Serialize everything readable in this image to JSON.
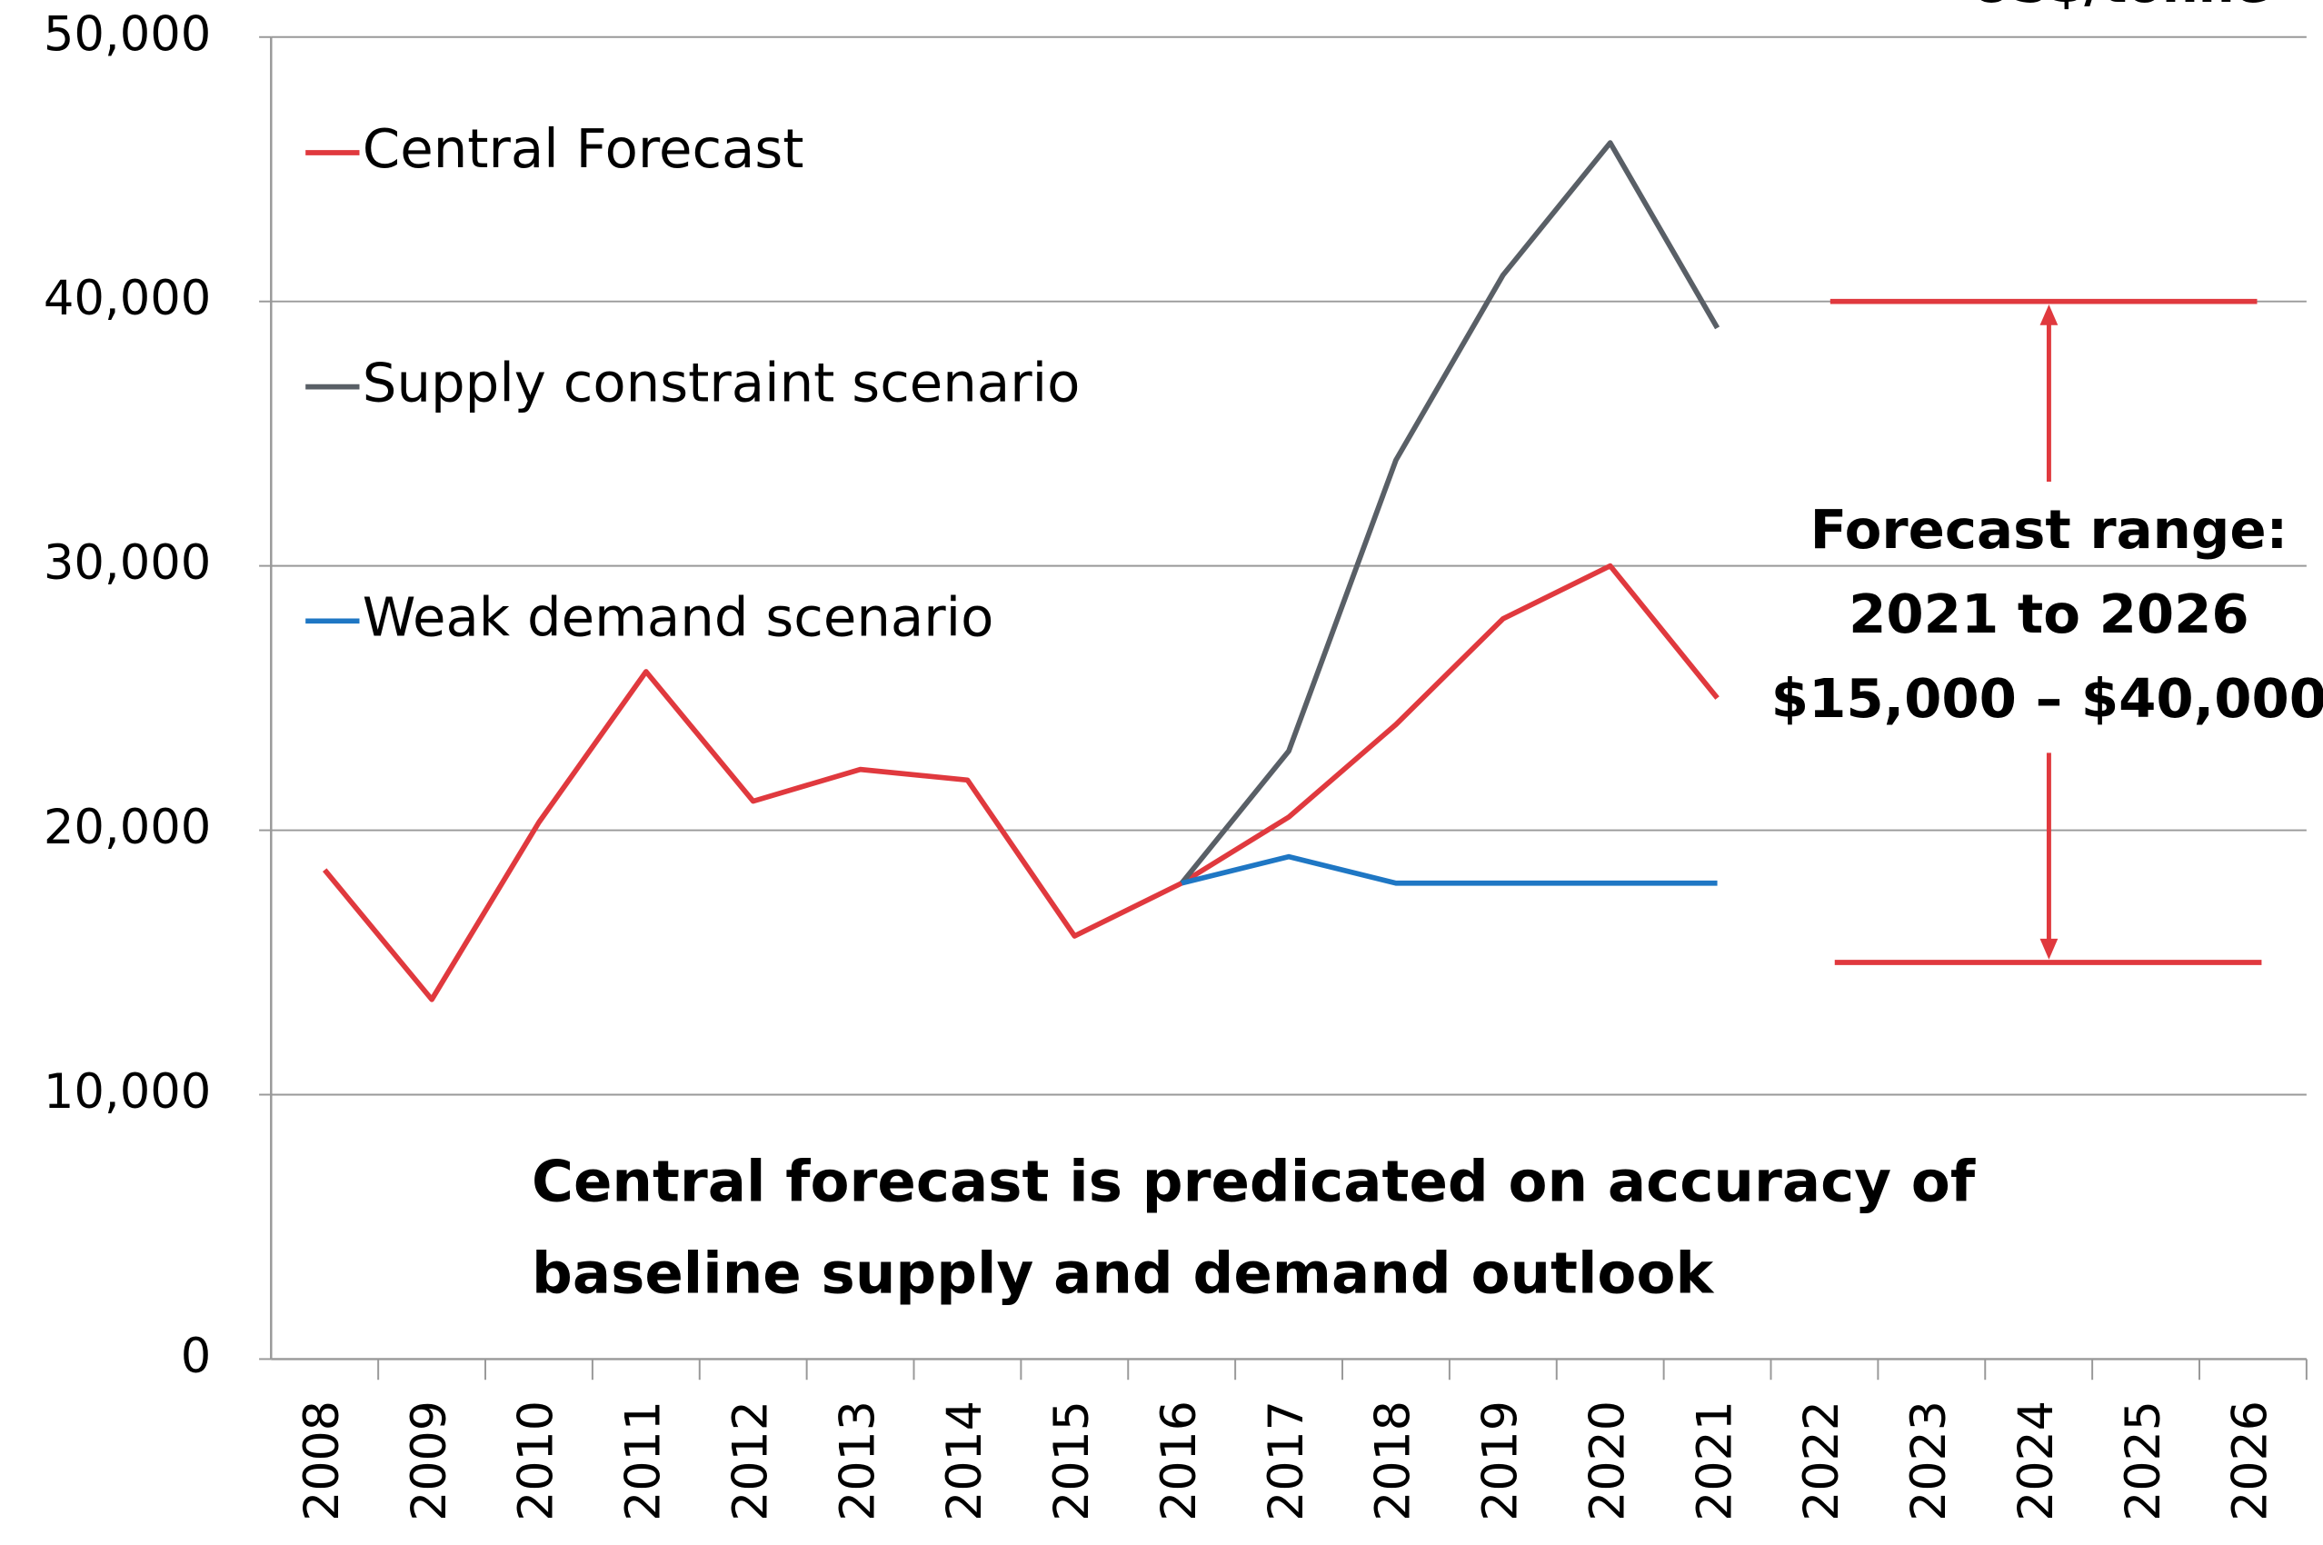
{
  "chart_data": {
    "type": "line",
    "title": "US$/tonne",
    "categories": [
      "2008",
      "2009",
      "2010",
      "2011",
      "2012",
      "2013",
      "2014",
      "2015",
      "2016",
      "2017",
      "2018",
      "2019",
      "2020",
      "2021",
      "2022",
      "2023",
      "2024",
      "2025",
      "2026"
    ],
    "series": [
      {
        "name": "Central Forecast",
        "color": "#e0393e",
        "values": [
          18500,
          13600,
          20300,
          26000,
          21100,
          22300,
          21900,
          16000,
          18000,
          20500,
          24000,
          28000,
          30000,
          25000,
          null,
          null,
          null,
          null,
          null
        ]
      },
      {
        "name": "Supply constraint scenario",
        "color": "#595f66",
        "values": [
          null,
          null,
          null,
          null,
          null,
          null,
          null,
          null,
          18000,
          23000,
          34000,
          41000,
          46000,
          39000,
          null,
          null,
          null,
          null,
          null
        ]
      },
      {
        "name": "Weak demand scenario",
        "color": "#1f77c4",
        "values": [
          null,
          null,
          null,
          null,
          null,
          null,
          null,
          null,
          18000,
          19000,
          18000,
          18000,
          18000,
          18000,
          null,
          null,
          null,
          null,
          null
        ]
      }
    ],
    "ylim": [
      0,
      50000
    ],
    "yticks": [
      0,
      {
        "value": 10000,
        "label": "10,000"
      },
      {
        "value": 20000,
        "label": "20,000"
      },
      {
        "value": 30000,
        "label": "30,000"
      },
      {
        "value": 40000,
        "label": "40,000"
      },
      {
        "value": 50000,
        "label": "50,000"
      }
    ],
    "grid": true,
    "legend": "upper left",
    "forecast_range": [
      15000,
      40000
    ],
    "range_annotation": [
      "Forecast range:",
      "2021 to 2026",
      "$15,000 – $40,000"
    ],
    "note": [
      "Central forecast is predicated on accuracy of",
      "baseline supply and demand outlook"
    ]
  }
}
